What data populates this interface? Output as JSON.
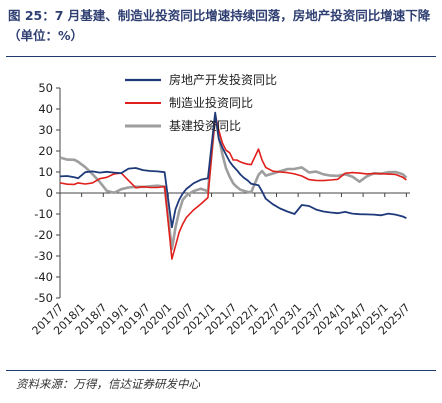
{
  "title": "图 25：7 月基建、制造业投资同比增速持续回落，房地产投资同比增速下降（单位：%）",
  "source": "资料来源：万得，信达证券研发中心",
  "chart_data": {
    "type": "line",
    "ylim": [
      -50,
      50
    ],
    "yticks": [
      50,
      40,
      30,
      20,
      10,
      0,
      -10,
      -20,
      -30,
      -40,
      -50
    ],
    "xlim": [
      "2017/7",
      "2025/8"
    ],
    "xticks": [
      "2017/7",
      "2018/1",
      "2018/7",
      "2019/1",
      "2019/7",
      "2020/1",
      "2020/7",
      "2021/1",
      "2021/7",
      "2022/1",
      "2022/7",
      "2023/1",
      "2023/7",
      "2024/1",
      "2024/7",
      "2025/1",
      "2025/7"
    ],
    "grid": false,
    "legend": "top-center",
    "colors": {
      "real_estate": "#1f3a7a",
      "manufacturing": "#e0201c",
      "infrastructure": "#9e9e9e"
    },
    "series": [
      {
        "name": "房地产开发投资同比",
        "points": [
          [
            "2017/7",
            7.9
          ],
          [
            "2017/9",
            8.1
          ],
          [
            "2017/11",
            7.5
          ],
          [
            "2017/12",
            7.0
          ],
          [
            "2018/2",
            9.9
          ],
          [
            "2018/4",
            10.3
          ],
          [
            "2018/6",
            9.7
          ],
          [
            "2018/8",
            10.1
          ],
          [
            "2018/10",
            9.7
          ],
          [
            "2018/12",
            9.5
          ],
          [
            "2019/2",
            11.6
          ],
          [
            "2019/4",
            11.9
          ],
          [
            "2019/6",
            10.9
          ],
          [
            "2019/8",
            10.5
          ],
          [
            "2019/10",
            10.3
          ],
          [
            "2019/12",
            9.9
          ],
          [
            "2020/2",
            -16.3
          ],
          [
            "2020/3",
            -7.7
          ],
          [
            "2020/4",
            -3.3
          ],
          [
            "2020/5",
            -0.3
          ],
          [
            "2020/6",
            1.9
          ],
          [
            "2020/8",
            4.6
          ],
          [
            "2020/10",
            6.3
          ],
          [
            "2020/12",
            7.0
          ],
          [
            "2021/2",
            38.3
          ],
          [
            "2021/3",
            25.6
          ],
          [
            "2021/4",
            21.6
          ],
          [
            "2021/5",
            18.3
          ],
          [
            "2021/6",
            15.0
          ],
          [
            "2021/7",
            12.7
          ],
          [
            "2021/8",
            10.9
          ],
          [
            "2021/9",
            8.8
          ],
          [
            "2021/10",
            7.2
          ],
          [
            "2021/11",
            6.0
          ],
          [
            "2021/12",
            4.4
          ],
          [
            "2022/2",
            3.7
          ],
          [
            "2022/3",
            0.7
          ],
          [
            "2022/4",
            -2.7
          ],
          [
            "2022/6",
            -5.4
          ],
          [
            "2022/8",
            -7.4
          ],
          [
            "2022/10",
            -8.8
          ],
          [
            "2022/12",
            -10.0
          ],
          [
            "2023/2",
            -5.7
          ],
          [
            "2023/4",
            -6.2
          ],
          [
            "2023/6",
            -7.9
          ],
          [
            "2023/8",
            -8.8
          ],
          [
            "2023/10",
            -9.3
          ],
          [
            "2023/12",
            -9.6
          ],
          [
            "2024/2",
            -9.0
          ],
          [
            "2024/4",
            -9.8
          ],
          [
            "2024/6",
            -10.1
          ],
          [
            "2024/8",
            -10.2
          ],
          [
            "2024/10",
            -10.3
          ],
          [
            "2024/12",
            -10.6
          ],
          [
            "2025/2",
            -9.8
          ],
          [
            "2025/4",
            -10.3
          ],
          [
            "2025/6",
            -11.2
          ],
          [
            "2025/7",
            -12.0
          ]
        ]
      },
      {
        "name": "制造业投资同比",
        "points": [
          [
            "2017/7",
            4.8
          ],
          [
            "2017/9",
            4.2
          ],
          [
            "2017/11",
            4.1
          ],
          [
            "2017/12",
            4.8
          ],
          [
            "2018/2",
            4.3
          ],
          [
            "2018/4",
            4.8
          ],
          [
            "2018/6",
            6.8
          ],
          [
            "2018/8",
            7.5
          ],
          [
            "2018/10",
            9.1
          ],
          [
            "2018/12",
            9.5
          ],
          [
            "2019/2",
            5.9
          ],
          [
            "2019/4",
            2.5
          ],
          [
            "2019/6",
            3.0
          ],
          [
            "2019/8",
            2.6
          ],
          [
            "2019/10",
            2.6
          ],
          [
            "2019/12",
            3.1
          ],
          [
            "2020/2",
            -31.5
          ],
          [
            "2020/3",
            -25.2
          ],
          [
            "2020/4",
            -18.8
          ],
          [
            "2020/5",
            -14.8
          ],
          [
            "2020/6",
            -11.7
          ],
          [
            "2020/8",
            -8.1
          ],
          [
            "2020/10",
            -5.3
          ],
          [
            "2020/12",
            -2.2
          ],
          [
            "2021/2",
            37.3
          ],
          [
            "2021/3",
            29.8
          ],
          [
            "2021/4",
            23.8
          ],
          [
            "2021/5",
            20.4
          ],
          [
            "2021/6",
            19.2
          ],
          [
            "2021/7",
            15.7
          ],
          [
            "2021/8",
            15.7
          ],
          [
            "2021/9",
            14.8
          ],
          [
            "2021/10",
            14.2
          ],
          [
            "2021/11",
            13.7
          ],
          [
            "2021/12",
            13.5
          ],
          [
            "2022/2",
            20.9
          ],
          [
            "2022/3",
            15.6
          ],
          [
            "2022/4",
            12.2
          ],
          [
            "2022/6",
            10.4
          ],
          [
            "2022/8",
            10.0
          ],
          [
            "2022/10",
            9.7
          ],
          [
            "2022/12",
            9.1
          ],
          [
            "2023/2",
            8.1
          ],
          [
            "2023/4",
            6.4
          ],
          [
            "2023/6",
            6.0
          ],
          [
            "2023/8",
            5.9
          ],
          [
            "2023/10",
            6.2
          ],
          [
            "2023/12",
            6.5
          ],
          [
            "2024/2",
            9.4
          ],
          [
            "2024/4",
            9.7
          ],
          [
            "2024/6",
            9.5
          ],
          [
            "2024/8",
            9.1
          ],
          [
            "2024/10",
            9.3
          ],
          [
            "2024/12",
            9.2
          ],
          [
            "2025/2",
            9.0
          ],
          [
            "2025/4",
            8.8
          ],
          [
            "2025/6",
            7.5
          ],
          [
            "2025/7",
            6.2
          ]
        ]
      },
      {
        "name": "基建投资同比",
        "points": [
          [
            "2017/7",
            16.9
          ],
          [
            "2017/9",
            15.9
          ],
          [
            "2017/11",
            15.8
          ],
          [
            "2017/12",
            14.9
          ],
          [
            "2018/2",
            12.3
          ],
          [
            "2018/4",
            9.0
          ],
          [
            "2018/6",
            5.3
          ],
          [
            "2018/8",
            1.0
          ],
          [
            "2018/10",
            0.1
          ],
          [
            "2018/12",
            1.8
          ],
          [
            "2019/2",
            2.6
          ],
          [
            "2019/4",
            3.0
          ],
          [
            "2019/6",
            2.9
          ],
          [
            "2019/8",
            3.2
          ],
          [
            "2019/10",
            3.5
          ],
          [
            "2019/12",
            3.0
          ],
          [
            "2020/2",
            -26.7
          ],
          [
            "2020/3",
            -16.4
          ],
          [
            "2020/4",
            -8.8
          ],
          [
            "2020/5",
            -3.3
          ],
          [
            "2020/6",
            -1.3
          ],
          [
            "2020/8",
            0.9
          ],
          [
            "2020/10",
            2.0
          ],
          [
            "2020/12",
            0.9
          ],
          [
            "2021/2",
            36.6
          ],
          [
            "2021/3",
            26.8
          ],
          [
            "2021/4",
            18.4
          ],
          [
            "2021/5",
            11.8
          ],
          [
            "2021/6",
            7.8
          ],
          [
            "2021/7",
            4.6
          ],
          [
            "2021/8",
            2.9
          ],
          [
            "2021/9",
            1.5
          ],
          [
            "2021/10",
            1.0
          ],
          [
            "2021/11",
            0.5
          ],
          [
            "2021/12",
            0.4
          ],
          [
            "2022/2",
            8.6
          ],
          [
            "2022/3",
            10.5
          ],
          [
            "2022/4",
            8.3
          ],
          [
            "2022/6",
            9.3
          ],
          [
            "2022/8",
            10.4
          ],
          [
            "2022/10",
            11.4
          ],
          [
            "2022/12",
            11.5
          ],
          [
            "2023/2",
            12.2
          ],
          [
            "2023/4",
            9.8
          ],
          [
            "2023/6",
            10.2
          ],
          [
            "2023/8",
            8.9
          ],
          [
            "2023/10",
            8.3
          ],
          [
            "2023/12",
            8.2
          ],
          [
            "2024/2",
            8.9
          ],
          [
            "2024/4",
            7.8
          ],
          [
            "2024/6",
            5.4
          ],
          [
            "2024/8",
            7.9
          ],
          [
            "2024/10",
            9.4
          ],
          [
            "2024/12",
            9.2
          ],
          [
            "2025/2",
            9.9
          ],
          [
            "2025/4",
            10.0
          ],
          [
            "2025/6",
            8.9
          ],
          [
            "2025/7",
            7.3
          ]
        ]
      }
    ]
  }
}
